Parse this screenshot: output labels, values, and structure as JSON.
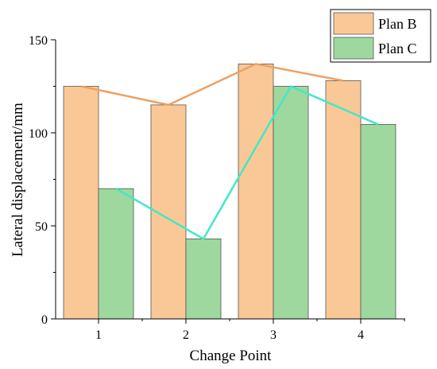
{
  "chart_data": {
    "type": "bar",
    "title": "",
    "xlabel": "Change Point",
    "ylabel": "Lateral displacement/mm",
    "categories": [
      "1",
      "2",
      "3",
      "4"
    ],
    "ylim": [
      0,
      150
    ],
    "yticks": [
      "0",
      "50",
      "100",
      "150"
    ],
    "grid": false,
    "legend_position": "top-right",
    "series": [
      {
        "name": "Plan B",
        "values": [
          125,
          115,
          137,
          128
        ],
        "color": "#F9C896",
        "line_color": "#F0A060"
      },
      {
        "name": "Plan C",
        "values": [
          70,
          43,
          125,
          104.5
        ],
        "color": "#9ED89E",
        "line_color": "#40E8C8"
      }
    ]
  }
}
